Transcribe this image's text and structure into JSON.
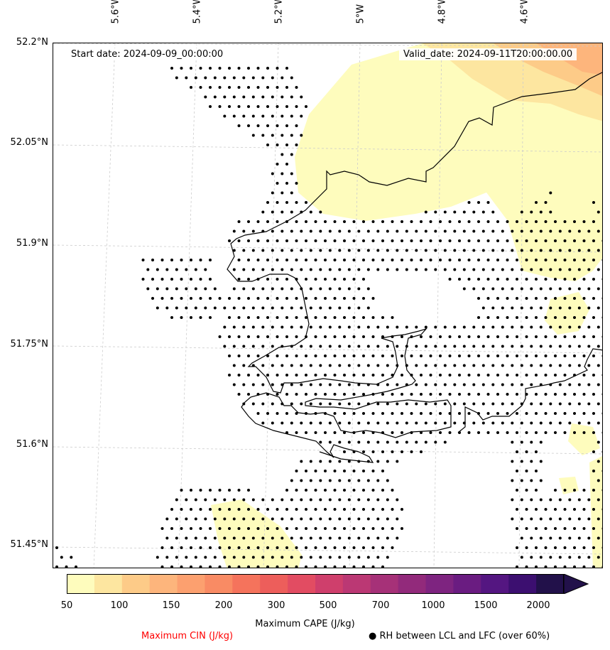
{
  "map": {
    "start_date": "Start date: 2024-09-09_00:00:00",
    "valid_date": "Valid_date: 2024-09-11T20:00:00.00",
    "lon_ticks": [
      "5.6°W",
      "5.4°W",
      "5.2°W",
      "5°W",
      "4.8°W",
      "4.6°W"
    ],
    "lat_ticks": [
      "52.2°N",
      "52.05°N",
      "51.9°N",
      "51.75°N",
      "51.6°N",
      "51.45°N"
    ],
    "coast_color": "#000000",
    "grid_color": "#cccccc"
  },
  "colorbar": {
    "title": "Maximum CAPE (J/kg)",
    "colors": [
      "#fefcbd",
      "#fde6a0",
      "#fdcb88",
      "#fdb57c",
      "#fca06f",
      "#f98b64",
      "#f5735c",
      "#ed5e5b",
      "#e24c62",
      "#cf3f6c",
      "#bb3874",
      "#a63178",
      "#922a7b",
      "#7e2480",
      "#6a1c81",
      "#541681",
      "#3c0f70",
      "#22114a"
    ],
    "tick_labels": [
      "50",
      "100",
      "150",
      "200",
      "300",
      "500",
      "700",
      "1000",
      "1500",
      "2000"
    ]
  },
  "legend": {
    "cin_label": "Maximum CIN (J/kg)",
    "cin_color": "#ff0000",
    "rh_label": "● RH between LCL and LFC (over 60%)"
  }
}
